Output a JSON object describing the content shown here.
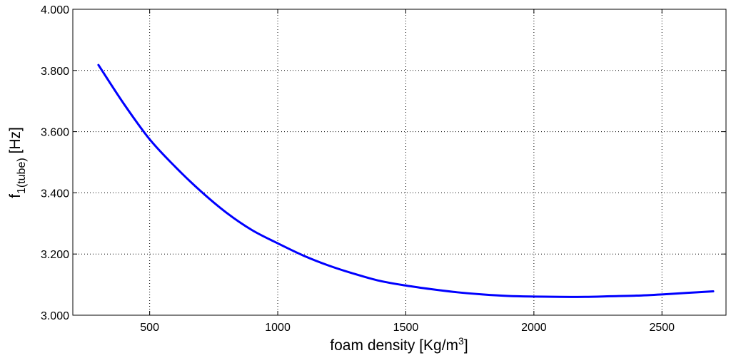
{
  "chart_data": {
    "type": "line",
    "title": "",
    "xlabel_main": "foam density [Kg/m",
    "xlabel_sup": "3",
    "xlabel_end": "]",
    "ylabel_main": "f",
    "ylabel_sub": "1(tube)",
    "ylabel_end": " [Hz]",
    "xlim": [
      200,
      2750
    ],
    "ylim": [
      3.0,
      4.0
    ],
    "grid": true,
    "x_ticks": [
      500,
      1000,
      1500,
      2000,
      2500
    ],
    "x_tick_labels": [
      "500",
      "1000",
      "1500",
      "2000",
      "2500"
    ],
    "y_ticks": [
      3.0,
      3.2,
      3.4,
      3.6,
      3.8,
      4.0
    ],
    "y_tick_labels": [
      "3.000",
      "3.200",
      "3.400",
      "3.600",
      "3.800",
      "4.000"
    ],
    "line_color": "#0000ff",
    "series": [
      {
        "x": [
          300,
          400,
          500,
          600,
          700,
          800,
          900,
          1000,
          1100,
          1200,
          1300,
          1400,
          1500,
          1600,
          1700,
          1800,
          1900,
          2000,
          2100,
          2200,
          2300,
          2400,
          2500,
          2600,
          2700
        ],
        "y": [
          3.818,
          3.69,
          3.575,
          3.485,
          3.405,
          3.335,
          3.278,
          3.235,
          3.195,
          3.162,
          3.135,
          3.112,
          3.097,
          3.085,
          3.075,
          3.068,
          3.063,
          3.061,
          3.06,
          3.06,
          3.062,
          3.064,
          3.068,
          3.073,
          3.078
        ]
      }
    ]
  }
}
